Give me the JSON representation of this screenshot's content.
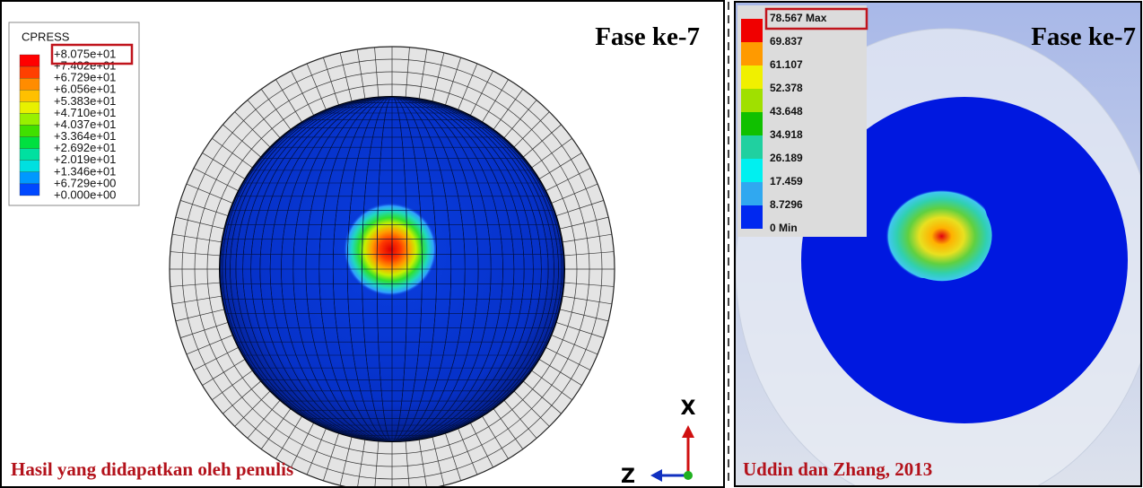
{
  "left_panel": {
    "title": "Fase ke-7",
    "legend": {
      "title": "CPRESS",
      "labels": [
        "+8.075e+01",
        "+7.402e+01",
        "+6.729e+01",
        "+6.056e+01",
        "+5.383e+01",
        "+4.710e+01",
        "+4.037e+01",
        "+3.364e+01",
        "+2.692e+01",
        "+2.019e+01",
        "+1.346e+01",
        "+6.729e+00",
        "+0.000e+00"
      ]
    },
    "caption": "Hasil yang didapatkan oleh penulis",
    "axes": {
      "x": "X",
      "z": "Z"
    }
  },
  "right_panel": {
    "title": "Fase ke-7",
    "legend": {
      "labels": [
        "78.567 Max",
        "69.837",
        "61.107",
        "52.378",
        "43.648",
        "34.918",
        "26.189",
        "17.459",
        "8.7296",
        "0 Min"
      ]
    },
    "caption": "Uddin dan Zhang, 2013"
  }
}
